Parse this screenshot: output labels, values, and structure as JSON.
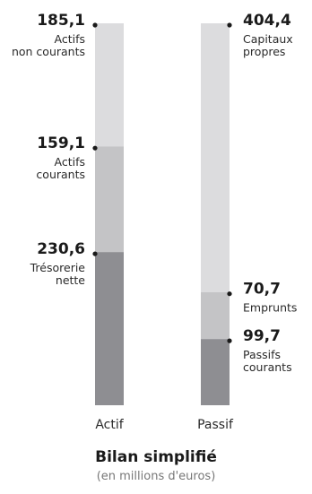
{
  "chart_data": {
    "type": "stacked-bar",
    "title": "Bilan simplifié",
    "subtitle": "(en millions d'euros)",
    "categories": [
      "Actif",
      "Passif"
    ],
    "bars": [
      {
        "category": "Actif",
        "segments": [
          {
            "label": "Trésorerie nette",
            "value": 230.6,
            "value_text": "230,6",
            "color": "#8e8e92"
          },
          {
            "label": "Actifs courants",
            "value": 159.1,
            "value_text": "159,1",
            "color": "#c4c4c6"
          },
          {
            "label": "Actifs non courants",
            "value": 185.1,
            "value_text": "185,1",
            "color": "#dcdcde"
          }
        ]
      },
      {
        "category": "Passif",
        "segments": [
          {
            "label": "Passifs courants",
            "value": 99.7,
            "value_text": "99,7",
            "color": "#8e8e92"
          },
          {
            "label": "Emprunts",
            "value": 70.7,
            "value_text": "70,7",
            "color": "#c4c4c6"
          },
          {
            "label": "Capitaux propres",
            "value": 404.4,
            "value_text": "404,4",
            "color": "#dcdcde"
          }
        ]
      }
    ]
  }
}
